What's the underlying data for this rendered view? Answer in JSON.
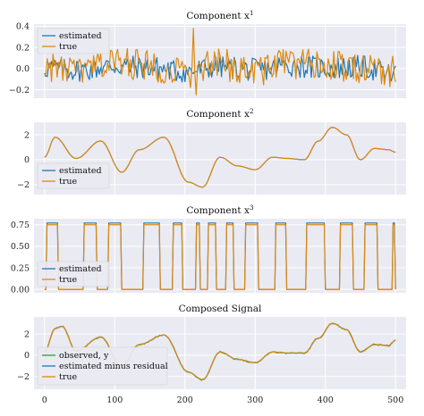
{
  "chart_data": [
    {
      "type": "line",
      "title_base": "Component x",
      "title_sup": "1",
      "xlim": [
        -15,
        515
      ],
      "ylim": [
        -0.28,
        0.42
      ],
      "yticks": [
        -0.2,
        0.0,
        0.2,
        0.4
      ],
      "ytick_labels": [
        "−0.2",
        "0.0",
        "0.2",
        "0.4"
      ],
      "x": [
        0,
        50,
        100,
        150,
        200,
        250,
        300,
        350,
        400,
        450,
        500
      ],
      "series": [
        {
          "name": "estimated",
          "color": "#1f77b4",
          "values": [
            0.02,
            -0.05,
            0.08,
            0.03,
            -0.1,
            0.06,
            -0.04,
            0.1,
            0.02,
            0.05,
            -0.2
          ]
        },
        {
          "name": "true",
          "color": "#dd8a10",
          "values": [
            0.05,
            -0.1,
            0.2,
            0.1,
            -0.15,
            0.12,
            -0.05,
            0.18,
            0.1,
            0.0,
            -0.1
          ]
        }
      ],
      "legend_loc": "upper-left"
    },
    {
      "type": "line",
      "title_base": "Component x",
      "title_sup": "2",
      "xlim": [
        -15,
        515
      ],
      "ylim": [
        -2.8,
        3.0
      ],
      "yticks": [
        -2,
        0,
        2
      ],
      "ytick_labels": [
        "−2",
        "0",
        "2"
      ],
      "x": [
        0,
        15,
        45,
        80,
        110,
        135,
        170,
        205,
        225,
        250,
        275,
        300,
        325,
        345,
        370,
        390,
        410,
        430,
        450,
        470,
        490,
        500
      ],
      "series": [
        {
          "name": "estimated",
          "color": "#1f77b4",
          "values": [
            0.2,
            1.8,
            0.1,
            1.5,
            -1.0,
            0.8,
            1.8,
            -1.8,
            -2.2,
            0.2,
            -0.5,
            -0.8,
            0.2,
            0.1,
            0.0,
            1.5,
            2.6,
            2.0,
            0.0,
            0.9,
            0.8,
            0.6
          ]
        },
        {
          "name": "true",
          "color": "#dd8a10",
          "values": [
            0.2,
            1.8,
            0.1,
            1.5,
            -1.0,
            0.8,
            1.8,
            -1.8,
            -2.2,
            0.2,
            -0.5,
            -0.8,
            0.2,
            0.1,
            0.0,
            1.5,
            2.6,
            2.0,
            0.0,
            0.9,
            0.8,
            0.6
          ]
        }
      ],
      "legend_loc": "lower-left"
    },
    {
      "type": "line",
      "title_base": "Component x",
      "title_sup": "3",
      "xlim": [
        -15,
        515
      ],
      "ylim": [
        -0.04,
        0.82
      ],
      "yticks": [
        0.0,
        0.25,
        0.5,
        0.75
      ],
      "ytick_labels": [
        "0.00",
        "0.25",
        "0.50",
        "0.75"
      ],
      "high_intervals": [
        [
          2,
          20
        ],
        [
          55,
          75
        ],
        [
          90,
          110
        ],
        [
          140,
          165
        ],
        [
          182,
          197
        ],
        [
          215,
          222
        ],
        [
          232,
          245
        ],
        [
          258,
          270
        ],
        [
          285,
          305
        ],
        [
          328,
          345
        ],
        [
          372,
          400
        ],
        [
          420,
          440
        ],
        [
          455,
          475
        ],
        [
          495,
          500
        ]
      ],
      "levels": {
        "low": 0.0,
        "high_true": 0.75,
        "high_estimated": 0.77
      },
      "series": [
        {
          "name": "estimated",
          "color": "#1f77b4"
        },
        {
          "name": "true",
          "color": "#dd8a10"
        }
      ],
      "legend_loc": "lower-left"
    },
    {
      "type": "line",
      "title": "Composed Signal",
      "xlim": [
        -15,
        515
      ],
      "ylim": [
        -3.2,
        3.6
      ],
      "yticks": [
        -2,
        0,
        2
      ],
      "ytick_labels": [
        "−2",
        "0",
        "2"
      ],
      "xticks": [
        0,
        100,
        200,
        300,
        400,
        500
      ],
      "x": [
        0,
        15,
        25,
        45,
        80,
        110,
        135,
        170,
        205,
        225,
        250,
        275,
        300,
        325,
        345,
        370,
        390,
        410,
        430,
        450,
        470,
        490,
        500
      ],
      "series": [
        {
          "name": "observed, y",
          "color": "#2ca02c",
          "values": [
            0.3,
            2.5,
            2.7,
            0.4,
            1.7,
            -1.0,
            1.0,
            1.9,
            -1.6,
            -2.3,
            0.3,
            -0.4,
            -0.7,
            0.3,
            0.2,
            0.2,
            1.6,
            3.0,
            2.4,
            0.3,
            1.0,
            0.9,
            1.4
          ]
        },
        {
          "name": "estimated minus residual",
          "color": "#1f77b4",
          "values": [
            0.3,
            2.5,
            2.7,
            0.4,
            1.7,
            -1.0,
            1.0,
            1.9,
            -1.6,
            -2.3,
            0.3,
            -0.4,
            -0.7,
            0.3,
            0.2,
            0.2,
            1.6,
            3.0,
            2.4,
            0.3,
            1.0,
            0.9,
            1.4
          ]
        },
        {
          "name": "true",
          "color": "#dd8a10",
          "values": [
            0.3,
            2.5,
            2.7,
            0.4,
            1.7,
            -1.0,
            1.0,
            1.9,
            -1.6,
            -2.3,
            0.3,
            -0.4,
            -0.7,
            0.3,
            0.2,
            0.2,
            1.6,
            3.0,
            2.4,
            0.3,
            1.0,
            0.9,
            1.4
          ]
        }
      ],
      "legend_loc": "lower-left"
    }
  ],
  "xtick_labels": [
    "0",
    "100",
    "200",
    "300",
    "400",
    "500"
  ]
}
